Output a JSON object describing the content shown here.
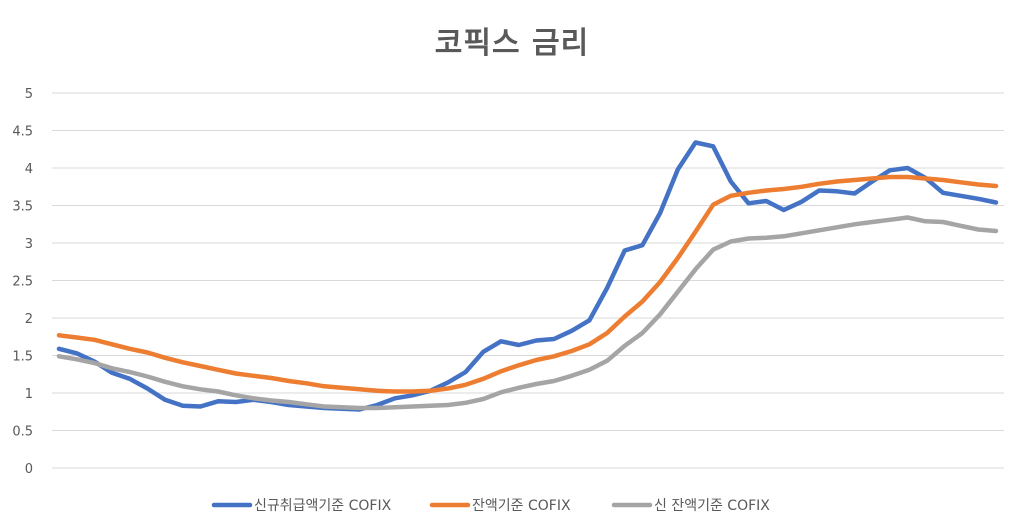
{
  "chart_data": {
    "type": "line",
    "title": "코픽스 금리",
    "xlabel": "",
    "ylabel": "",
    "ylim": [
      0,
      5
    ],
    "yticks": [
      "0",
      "0.5",
      "1",
      "1.5",
      "2",
      "2.5",
      "3",
      "3.5",
      "4",
      "4.5",
      "5"
    ],
    "grid": true,
    "legend": "bottom",
    "series": [
      {
        "name": "신규취급액기준 COFIX",
        "color": "#4472C4",
        "values": [
          1.59,
          1.53,
          1.42,
          1.27,
          1.19,
          1.06,
          0.91,
          0.83,
          0.82,
          0.89,
          0.88,
          0.91,
          0.88,
          0.84,
          0.82,
          0.8,
          0.79,
          0.78,
          0.84,
          0.93,
          0.97,
          1.03,
          1.14,
          1.28,
          1.55,
          1.69,
          1.64,
          1.7,
          1.72,
          1.83,
          1.97,
          2.4,
          2.9,
          2.97,
          3.4,
          3.98,
          4.34,
          4.29,
          3.82,
          3.53,
          3.56,
          3.44,
          3.55,
          3.7,
          3.69,
          3.66,
          3.82,
          3.97,
          4.0,
          3.87,
          3.67,
          3.63,
          3.59,
          3.54
        ]
      },
      {
        "name": "잔액기준 COFIX",
        "color": "#ED7D31",
        "values": [
          1.77,
          1.74,
          1.71,
          1.65,
          1.59,
          1.54,
          1.47,
          1.41,
          1.36,
          1.31,
          1.26,
          1.23,
          1.2,
          1.16,
          1.13,
          1.09,
          1.07,
          1.05,
          1.03,
          1.02,
          1.02,
          1.03,
          1.06,
          1.11,
          1.19,
          1.29,
          1.37,
          1.44,
          1.49,
          1.56,
          1.65,
          1.8,
          2.02,
          2.22,
          2.48,
          2.8,
          3.15,
          3.51,
          3.63,
          3.67,
          3.7,
          3.72,
          3.75,
          3.79,
          3.82,
          3.84,
          3.86,
          3.88,
          3.88,
          3.86,
          3.84,
          3.81,
          3.78,
          3.76
        ]
      },
      {
        "name": "신 잔액기준 COFIX",
        "color": "#A5A5A5",
        "values": [
          1.49,
          1.45,
          1.4,
          1.33,
          1.28,
          1.22,
          1.15,
          1.09,
          1.05,
          1.02,
          0.97,
          0.93,
          0.9,
          0.88,
          0.85,
          0.82,
          0.81,
          0.8,
          0.8,
          0.81,
          0.82,
          0.83,
          0.84,
          0.87,
          0.92,
          1.01,
          1.07,
          1.12,
          1.16,
          1.23,
          1.31,
          1.43,
          1.63,
          1.8,
          2.05,
          2.35,
          2.65,
          2.91,
          3.02,
          3.06,
          3.07,
          3.09,
          3.13,
          3.17,
          3.21,
          3.25,
          3.28,
          3.31,
          3.34,
          3.29,
          3.28,
          3.23,
          3.18,
          3.16
        ]
      }
    ]
  }
}
